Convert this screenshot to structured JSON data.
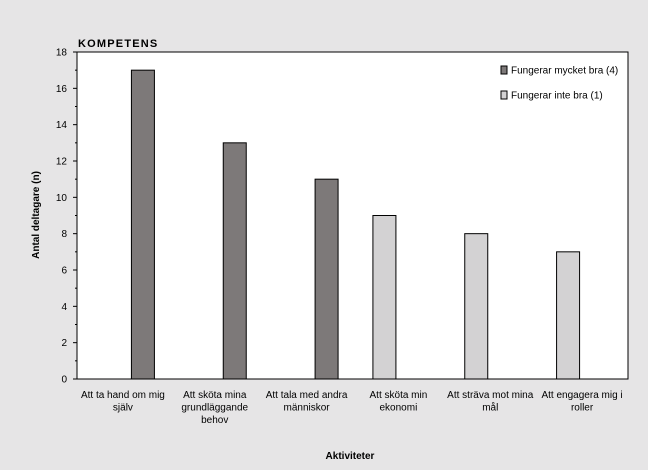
{
  "chart_data": {
    "type": "bar",
    "title": "KOMPETENS",
    "xlabel": "Aktiviteter",
    "ylabel": "Antal deltagare (n)",
    "ylim": [
      0,
      18
    ],
    "yticks": [
      0,
      2,
      4,
      6,
      8,
      10,
      12,
      14,
      16,
      18
    ],
    "categories": [
      [
        "Att ta hand om mig",
        "själv"
      ],
      [
        "Att sköta mina",
        "grundläggande",
        "behov"
      ],
      [
        "Att tala med andra",
        "människor"
      ],
      [
        "Att sköta min",
        "ekonomi"
      ],
      [
        "Att sträva mot mina",
        "mål"
      ],
      [
        "Att engagera mig i",
        "roller"
      ]
    ],
    "series": [
      {
        "name": "Fungerar mycket bra (4)",
        "color": "#7d7979",
        "values": [
          17,
          13,
          11,
          null,
          null,
          null
        ]
      },
      {
        "name": "Fungerar inte bra (1)",
        "color": "#d3d2d3",
        "values": [
          null,
          null,
          null,
          9,
          8,
          7
        ]
      }
    ],
    "legend_position": "top-right",
    "grid": false
  }
}
